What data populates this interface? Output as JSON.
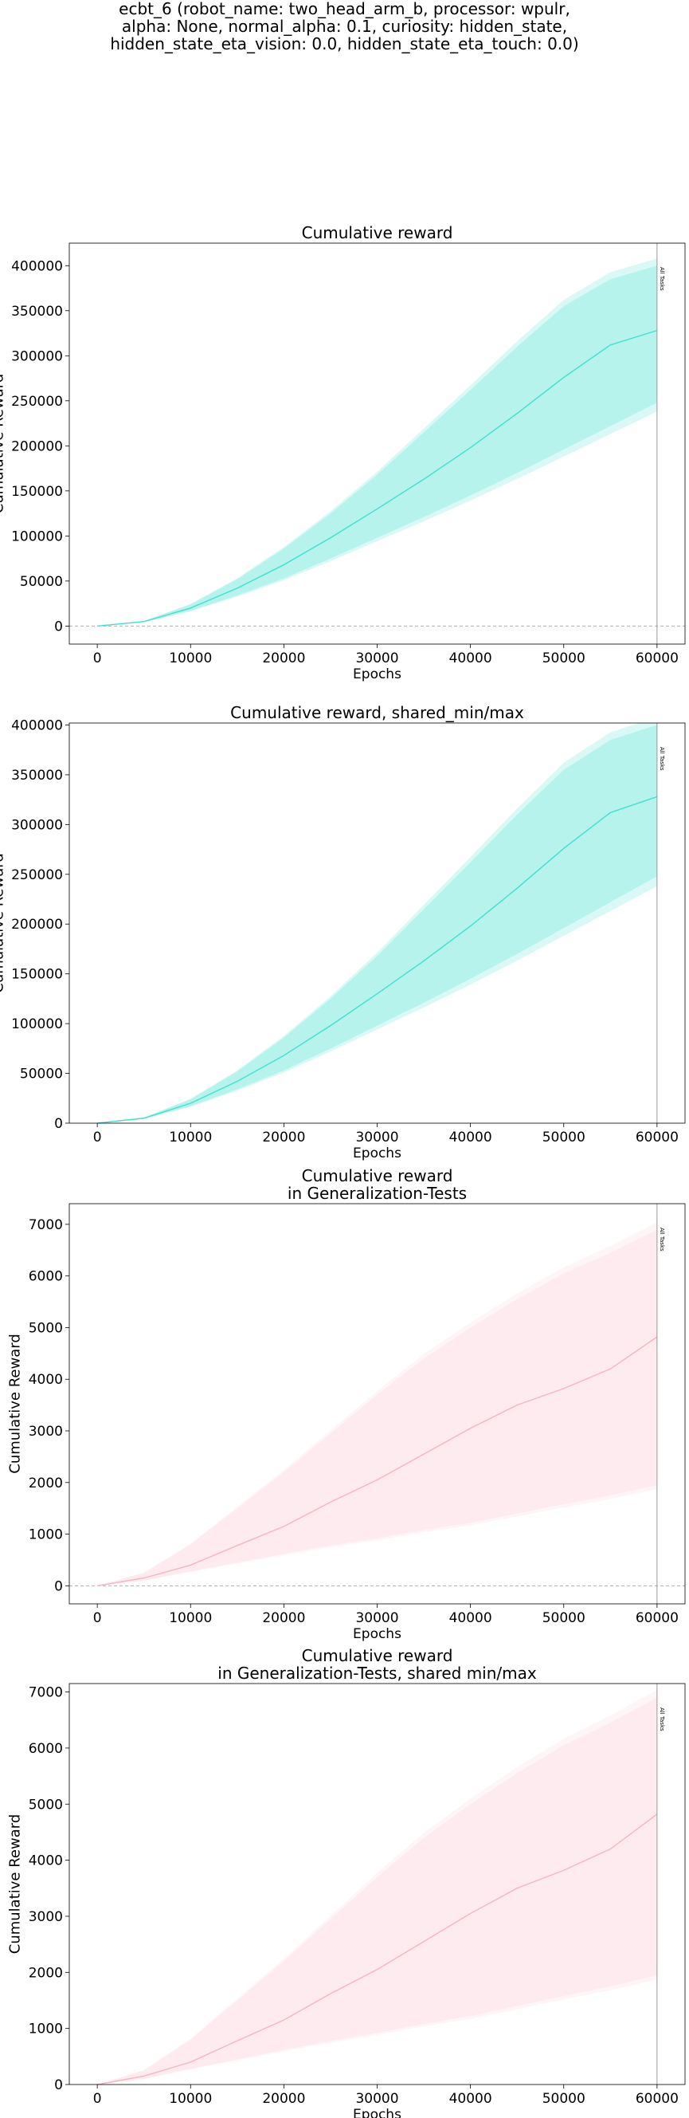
{
  "figure": {
    "suptitle_lines": [
      "ecbt_6 (robot_name: two_head_arm_b, processor: wpulr,",
      "alpha: None, normal_alpha: 0.1, curiosity: hidden_state,",
      "hidden_state_eta_vision: 0.0, hidden_state_eta_touch: 0.0)"
    ]
  },
  "chart_data": [
    {
      "type": "line",
      "title": [
        "Cumulative reward"
      ],
      "xlabel": "Epochs",
      "ylabel": "Cumulative Reward",
      "xlim": [
        -3000,
        63000
      ],
      "ylim": [
        -20000,
        425000
      ],
      "xticks": [
        0,
        10000,
        20000,
        30000,
        40000,
        50000,
        60000
      ],
      "yticks": [
        0,
        50000,
        100000,
        150000,
        200000,
        250000,
        300000,
        350000,
        400000
      ],
      "zero_line": true,
      "vline": {
        "x": 60000,
        "label": "All Tasks"
      },
      "color": "#40e0d0",
      "fill_color": "#aef2ea",
      "x": [
        0,
        5000,
        10000,
        15000,
        20000,
        25000,
        30000,
        35000,
        40000,
        45000,
        50000,
        55000,
        60000
      ],
      "mean": [
        0,
        5000,
        20000,
        42000,
        68000,
        98000,
        130000,
        163000,
        198000,
        236000,
        276000,
        312000,
        328000
      ],
      "band_min": [
        0,
        4500,
        17000,
        34000,
        53000,
        75000,
        98000,
        121000,
        145000,
        170000,
        196000,
        222000,
        248000
      ],
      "band_max": [
        0,
        5500,
        24000,
        52000,
        86000,
        125000,
        168000,
        215000,
        262000,
        310000,
        355000,
        385000,
        400000
      ]
    },
    {
      "type": "line",
      "title": [
        "Cumulative reward, shared_min/max"
      ],
      "xlabel": "Epochs",
      "ylabel": "Cumulative Reward",
      "xlim": [
        -3000,
        63000
      ],
      "ylim": [
        0,
        402000
      ],
      "xticks": [
        0,
        10000,
        20000,
        30000,
        40000,
        50000,
        60000
      ],
      "yticks": [
        0,
        50000,
        100000,
        150000,
        200000,
        250000,
        300000,
        350000,
        400000
      ],
      "zero_line": false,
      "vline": {
        "x": 60000,
        "label": "All Tasks"
      },
      "color": "#40e0d0",
      "fill_color": "#aef2ea",
      "x": [
        0,
        5000,
        10000,
        15000,
        20000,
        25000,
        30000,
        35000,
        40000,
        45000,
        50000,
        55000,
        60000
      ],
      "mean": [
        0,
        5000,
        20000,
        42000,
        68000,
        98000,
        130000,
        163000,
        198000,
        236000,
        276000,
        312000,
        328000
      ],
      "band_min": [
        0,
        4500,
        17000,
        34000,
        53000,
        75000,
        98000,
        121000,
        145000,
        170000,
        196000,
        222000,
        248000
      ],
      "band_max": [
        0,
        5500,
        24000,
        52000,
        86000,
        125000,
        168000,
        215000,
        262000,
        310000,
        355000,
        385000,
        400000
      ]
    },
    {
      "type": "line",
      "title": [
        "Cumulative reward",
        "in Generalization-Tests"
      ],
      "xlabel": "Epochs",
      "ylabel": "Cumulative Reward",
      "xlim": [
        -3000,
        63000
      ],
      "ylim": [
        -350,
        7400
      ],
      "xticks": [
        0,
        10000,
        20000,
        30000,
        40000,
        50000,
        60000
      ],
      "yticks": [
        0,
        1000,
        2000,
        3000,
        4000,
        5000,
        6000,
        7000
      ],
      "zero_line": true,
      "vline": {
        "x": 60000,
        "label": "All Tasks"
      },
      "color": "#f4b6c2",
      "fill_color": "#fde9ee",
      "x": [
        0,
        5000,
        10000,
        15000,
        20000,
        25000,
        30000,
        35000,
        40000,
        45000,
        50000,
        55000,
        60000
      ],
      "mean": [
        0,
        150,
        400,
        780,
        1150,
        1620,
        2050,
        2550,
        3050,
        3500,
        3820,
        4200,
        4820
      ],
      "band_min": [
        0,
        100,
        280,
        450,
        620,
        780,
        920,
        1080,
        1220,
        1400,
        1580,
        1750,
        1950
      ],
      "band_max": [
        0,
        250,
        800,
        1500,
        2200,
        2950,
        3700,
        4400,
        5000,
        5550,
        6050,
        6450,
        6900
      ]
    },
    {
      "type": "line",
      "title": [
        "Cumulative reward",
        "in Generalization-Tests, shared min/max"
      ],
      "xlabel": "Epochs",
      "ylabel": "Cumulative Reward",
      "xlim": [
        -3000,
        63000
      ],
      "ylim": [
        0,
        7150
      ],
      "xticks": [
        0,
        10000,
        20000,
        30000,
        40000,
        50000,
        60000
      ],
      "yticks": [
        0,
        1000,
        2000,
        3000,
        4000,
        5000,
        6000,
        7000
      ],
      "zero_line": false,
      "vline": {
        "x": 60000,
        "label": "All Tasks"
      },
      "color": "#f4b6c2",
      "fill_color": "#fde9ee",
      "x": [
        0,
        5000,
        10000,
        15000,
        20000,
        25000,
        30000,
        35000,
        40000,
        45000,
        50000,
        55000,
        60000
      ],
      "mean": [
        0,
        150,
        400,
        780,
        1150,
        1620,
        2050,
        2550,
        3050,
        3500,
        3820,
        4200,
        4820
      ],
      "band_min": [
        0,
        100,
        280,
        450,
        620,
        780,
        920,
        1080,
        1220,
        1400,
        1580,
        1750,
        1950
      ],
      "band_max": [
        0,
        250,
        800,
        1500,
        2200,
        2950,
        3700,
        4400,
        5000,
        5550,
        6050,
        6450,
        6900
      ]
    }
  ]
}
